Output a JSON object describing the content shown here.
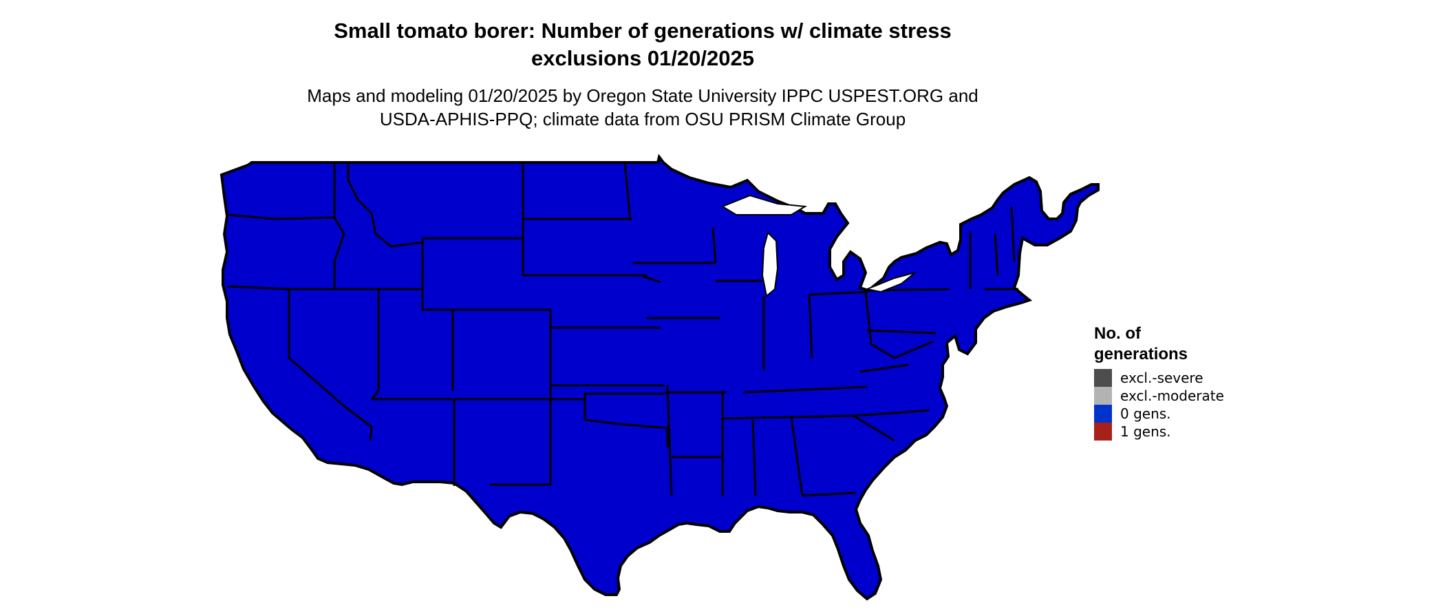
{
  "title": {
    "line1": "Small tomato borer: Number of generations w/ climate stress",
    "line2": "exclusions 01/20/2025"
  },
  "subtitle": {
    "line1": "Maps and modeling 01/20/2025 by Oregon State University IPPC USPEST.ORG and",
    "line2": "USDA-APHIS-PPQ; climate data from OSU PRISM Climate Group"
  },
  "map": {
    "region": "United States (contiguous)",
    "colors": {
      "zero_gens": "#0000cc",
      "one_gen_bright": "#ff4500",
      "one_gen_mid": "#e0380e",
      "one_gen_dark": "#a8201a",
      "one_gen_darkest": "#8b1a1a",
      "borders": "#000000"
    }
  },
  "legend": {
    "title_line1": "No. of",
    "title_line2": "generations",
    "items": [
      {
        "label": "excl.-severe",
        "color": "#4d4d4d"
      },
      {
        "label": "excl.-moderate",
        "color": "#b3b3b3"
      },
      {
        "label": "0 gens.",
        "color": "#0033cc"
      },
      {
        "label": "1 gens.",
        "color": "#a8201a"
      }
    ]
  }
}
